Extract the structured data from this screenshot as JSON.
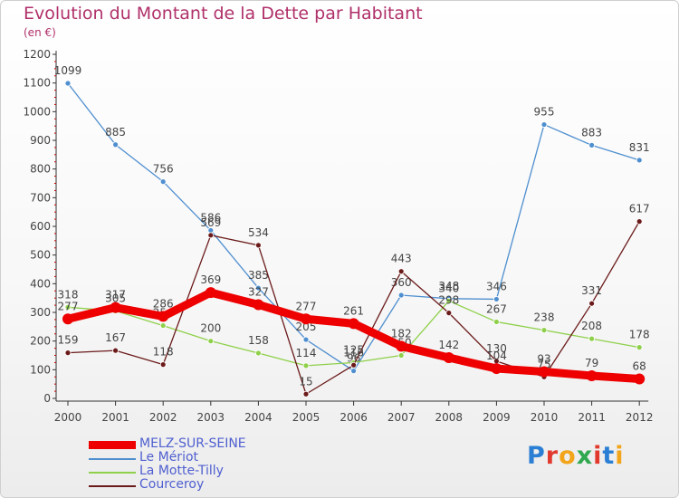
{
  "chart": {
    "title": "Evolution du Montant de la Dette par Habitant",
    "subtitle": "(en €)"
  },
  "logo": {
    "text": "Proxiti",
    "colors": [
      "#2a7fd4",
      "#e2392f",
      "#f2a51a",
      "#2fa84f",
      "#e2392f",
      "#2a7fd4",
      "#f2a51a"
    ]
  },
  "chart_data": {
    "type": "line",
    "title": "Evolution du Montant de la Dette par Habitant",
    "subtitle": "(en €)",
    "xlabel": "",
    "ylabel": "",
    "ylim": [
      0,
      1200
    ],
    "yticks": [
      0,
      100,
      200,
      300,
      400,
      500,
      600,
      700,
      800,
      900,
      1000,
      1100,
      1200
    ],
    "grid": false,
    "legend_position": "bottom-left",
    "categories": [
      "2000",
      "2001",
      "2002",
      "2003",
      "2004",
      "2005",
      "2006",
      "2007",
      "2008",
      "2009",
      "2010",
      "2011",
      "2012"
    ],
    "series": [
      {
        "name": "MELZ-SUR-SEINE",
        "color": "#ee0000",
        "values": [
          277,
          317,
          286,
          369,
          327,
          277,
          261,
          182,
          142,
          104,
          93,
          79,
          68
        ]
      },
      {
        "name": "Le Mériot",
        "color": "#4f8fcf",
        "values": [
          1099,
          885,
          756,
          586,
          385,
          205,
          96,
          360,
          348,
          346,
          955,
          883,
          831
        ]
      },
      {
        "name": "La Motte-Tilly",
        "color": "#8fd04a",
        "values": [
          318,
          305,
          254,
          200,
          158,
          114,
          125,
          150,
          340,
          267,
          238,
          208,
          178
        ]
      },
      {
        "name": "Courceroy",
        "color": "#6b1a1a",
        "values": [
          159,
          167,
          118,
          569,
          534,
          15,
          116,
          443,
          298,
          130,
          75,
          331,
          617
        ]
      }
    ]
  }
}
